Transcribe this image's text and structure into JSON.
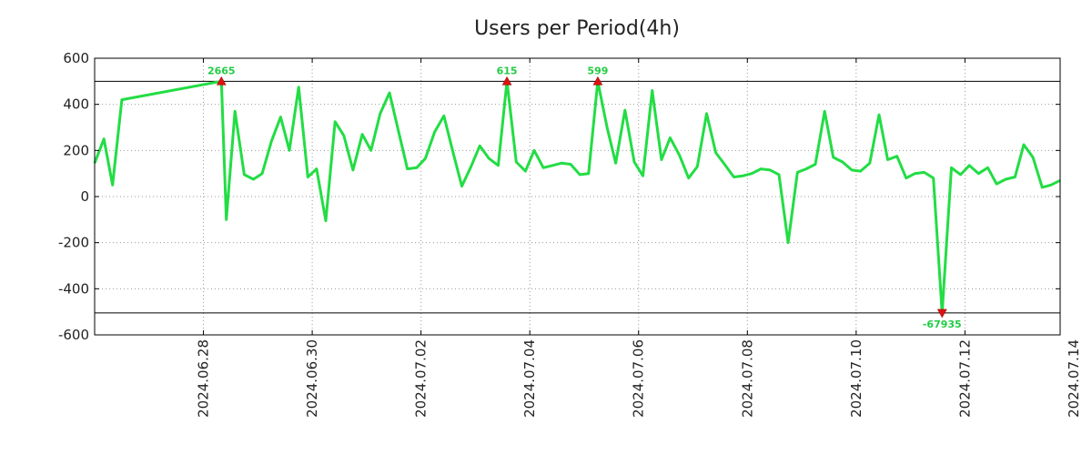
{
  "chart_data": {
    "type": "line",
    "title": "Users per Period(4h)",
    "xlabel": "",
    "ylabel": "",
    "ylim": [
      -600,
      600
    ],
    "yticks": [
      600,
      400,
      200,
      0,
      -200,
      -400,
      -600
    ],
    "ytick_labels": [
      "600",
      "400",
      "200",
      "0",
      "-200",
      "-400",
      "-600"
    ],
    "xlim": [
      -2.0,
      15.75
    ],
    "xticks": [
      0,
      2,
      4,
      6,
      8,
      10,
      12,
      14
    ],
    "xtick_labels": [
      "2024.06.28",
      "2024.06.30",
      "2024.07.02",
      "2024.07.04",
      "2024.07.06",
      "2024.07.08",
      "2024.07.10",
      "2024.07.12",
      "2024.07.14"
    ],
    "xtick_positions": [
      0,
      2,
      4,
      6,
      8,
      10,
      12,
      14,
      16
    ],
    "grid": true,
    "clip_lines": [
      500,
      -505
    ],
    "series": [
      {
        "name": "Users",
        "color": "#22dd44",
        "x": [
          -2.0,
          -1.83,
          -1.67,
          -1.5,
          0.33,
          0.42,
          0.58,
          0.75,
          0.92,
          1.08,
          1.25,
          1.42,
          1.58,
          1.75,
          1.92,
          2.08,
          2.25,
          2.42,
          2.58,
          2.75,
          2.92,
          3.08,
          3.25,
          3.42,
          3.58,
          3.75,
          3.92,
          4.08,
          4.25,
          4.42,
          4.58,
          4.75,
          4.92,
          5.08,
          5.25,
          5.42,
          5.58,
          5.75,
          5.92,
          6.08,
          6.25,
          6.42,
          6.58,
          6.75,
          6.92,
          7.08,
          7.25,
          7.42,
          7.58,
          7.75,
          7.92,
          8.08,
          8.25,
          8.42,
          8.58,
          8.75,
          8.92,
          9.08,
          9.25,
          9.42,
          9.58,
          9.75,
          9.92,
          10.08,
          10.25,
          10.42,
          10.58,
          10.75,
          10.92,
          11.08,
          11.25,
          11.42,
          11.58,
          11.75,
          11.92,
          12.08,
          12.25,
          12.42,
          12.58,
          12.75,
          12.92,
          13.08,
          13.25,
          13.42,
          13.58,
          13.75,
          13.92,
          14.08,
          14.25,
          14.42,
          14.58,
          14.75,
          14.92,
          15.08,
          15.25,
          15.42,
          15.58,
          15.75
        ],
        "y": [
          145,
          250,
          50,
          420,
          500,
          -100,
          370,
          95,
          75,
          100,
          240,
          345,
          200,
          475,
          85,
          120,
          -105,
          325,
          265,
          115,
          270,
          200,
          360,
          450,
          290,
          120,
          125,
          165,
          280,
          350,
          200,
          45,
          130,
          220,
          165,
          135,
          500,
          150,
          110,
          200,
          125,
          135,
          145,
          140,
          95,
          100,
          500,
          300,
          145,
          375,
          150,
          90,
          460,
          160,
          255,
          180,
          80,
          130,
          360,
          190,
          140,
          85,
          90,
          100,
          120,
          115,
          95,
          -200,
          105,
          120,
          140,
          370,
          170,
          150,
          115,
          110,
          145,
          355,
          160,
          175,
          80,
          100,
          105,
          80,
          -505,
          125,
          95,
          135,
          100,
          125,
          55,
          75,
          85,
          225,
          170,
          40,
          50,
          70
        ]
      }
    ],
    "annotations": [
      {
        "x": 0.33,
        "y": 500,
        "label": "2665",
        "direction": "up"
      },
      {
        "x": 5.58,
        "y": 500,
        "label": "615",
        "direction": "up"
      },
      {
        "x": 7.25,
        "y": 500,
        "label": "599",
        "direction": "up"
      },
      {
        "x": 13.58,
        "y": -505,
        "label": "-67935",
        "direction": "down"
      }
    ],
    "colors": {
      "line": "#22dd44",
      "marker": "#dd1111",
      "label": "#22cc44",
      "axis": "#000000",
      "grid": "#999999"
    }
  }
}
